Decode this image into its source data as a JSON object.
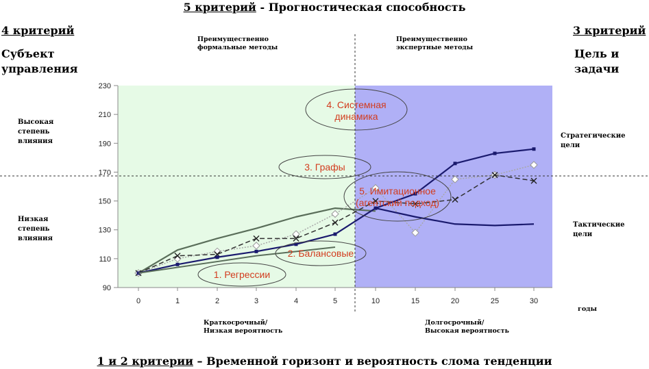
{
  "header": {
    "top_underlined": "5 критерий",
    "top_rest": " - Прогностическая способность",
    "bottom_underlined": "1 и 2 критерии",
    "bottom_rest": " – Временной горизонт и вероятность слома тенденции"
  },
  "corners": {
    "left_crit": "4 критерий",
    "left_line1": "Субъект",
    "left_line2": "управления",
    "right_crit": "3 критерий",
    "right_line1": "Цель и",
    "right_line2": "задачи"
  },
  "methods": {
    "formal_l1": "Преимущественно",
    "formal_l2": "формальные методы",
    "expert_l1": "Преимущественно",
    "expert_l2": "экспертные методы"
  },
  "influence": {
    "high_l1": "Высокая",
    "high_l2": "степень",
    "high_l3": "влияния",
    "low_l1": "Низкая",
    "low_l2": "степень",
    "low_l3": "влияния"
  },
  "goals": {
    "strategic_l1": "Стратегические",
    "strategic_l2": "цели",
    "tactical_l1": "Тактические",
    "tactical_l2": "цели"
  },
  "horizon": {
    "short_l1": "Краткосрочный/",
    "short_l2": "Низкая вероятность",
    "long_l1": "Долгосрочный/",
    "long_l2": "Высокая вероятность",
    "years": "годы"
  },
  "ellipses": {
    "e1": "1. Регрессии",
    "e2": "2. Балансовые",
    "e3": "3. Графы",
    "e4_l1": "4. Системная",
    "e4_l2": "динамика",
    "e5_l1": "5. Имитационное",
    "e5_l2": "(агентский подход)"
  },
  "colors": {
    "left_bg": "#e6fae6",
    "right_bg": "#b0b0f6",
    "green_line": "#5a6e5a",
    "navy": "#1a1a6e",
    "ellipse_text": "#d23c1e"
  },
  "chart_data": {
    "type": "line",
    "categories": [
      "0",
      "1",
      "2",
      "3",
      "4",
      "5",
      "10",
      "15",
      "20",
      "25",
      "30"
    ],
    "ylim": [
      90,
      230
    ],
    "yticks": [
      "90",
      "110",
      "130",
      "150",
      "170",
      "190",
      "210",
      "230"
    ],
    "series": [
      {
        "values": [
          100,
          116,
          124,
          131,
          139,
          145,
          143,
          null,
          null,
          null,
          null
        ]
      },
      {
        "values": [
          100,
          110,
          115,
          119,
          127,
          141,
          159,
          128,
          165,
          168,
          175
        ]
      },
      {
        "values": [
          100,
          112,
          113,
          124,
          124,
          135,
          150,
          148,
          151,
          168,
          164
        ]
      },
      {
        "values": [
          100,
          106,
          111,
          115,
          120,
          127,
          145,
          155,
          176,
          183,
          186
        ]
      },
      {
        "values": [
          100,
          104,
          108,
          112,
          115,
          118,
          null,
          null,
          null,
          null,
          null
        ]
      },
      {
        "values": [
          null,
          null,
          null,
          null,
          null,
          null,
          145,
          139,
          134,
          133,
          134
        ]
      }
    ]
  }
}
